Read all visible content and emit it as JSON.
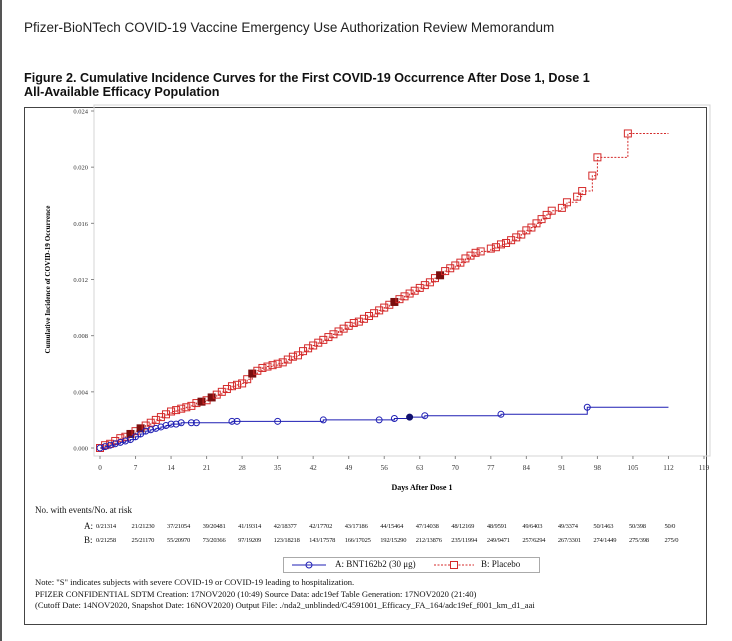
{
  "document_header": "Pfizer-BioNTech COVID-19 Vaccine Emergency Use Authorization Review Memorandum",
  "figure_title_line1": "Figure 2. Cumulative Incidence Curves for the First COVID-19 Occurrence After Dose 1, Dose 1",
  "figure_title_line2": "All-Available Efficacy Population",
  "chart_data": {
    "type": "line",
    "title": "Cumulative Incidence Curves for the First COVID-19 Occurrence After Dose 1, Dose 1",
    "xlabel": "Days After Dose 1",
    "ylabel": "Cumulative Incidence of COVID-19 Occurrence",
    "xlim": [
      0,
      119
    ],
    "ylim": [
      0,
      0.024
    ],
    "x_ticks": [
      "0",
      "7",
      "14",
      "21",
      "28",
      "35",
      "42",
      "49",
      "56",
      "63",
      "70",
      "77",
      "84",
      "91",
      "98",
      "105",
      "112",
      "119"
    ],
    "y_ticks": [
      "0.000",
      "0.004",
      "0.008",
      "0.012",
      "0.016",
      "0.020",
      "0.024"
    ],
    "grid": false,
    "legend_position": "bottom",
    "series": [
      {
        "name": "A: BNT162b2 (30 μg)",
        "color": "#1f1fb4",
        "marker": "circle",
        "line_style": "solid",
        "x": [
          0,
          1,
          2,
          3,
          4,
          5,
          6,
          7,
          8,
          9,
          10,
          11,
          12,
          13,
          14,
          15,
          16,
          18,
          19,
          26,
          27,
          35,
          44,
          55,
          58,
          61,
          64,
          79,
          96,
          112
        ],
        "y": [
          0.0,
          0.0001,
          0.0002,
          0.0003,
          0.0004,
          0.0005,
          0.0006,
          0.0008,
          0.001,
          0.0012,
          0.0013,
          0.0014,
          0.0015,
          0.0016,
          0.0017,
          0.0017,
          0.0018,
          0.0018,
          0.0018,
          0.0019,
          0.0019,
          0.0019,
          0.002,
          0.002,
          0.0021,
          0.0022,
          0.0023,
          0.0024,
          0.0029,
          0.0029
        ],
        "severe_x": [
          61
        ]
      },
      {
        "name": "B: Placebo",
        "color": "#d42a2a",
        "marker": "square",
        "line_style": "dashed",
        "x": [
          0,
          1,
          2,
          3,
          4,
          5,
          6,
          7,
          8,
          9,
          10,
          11,
          12,
          13,
          14,
          15,
          16,
          17,
          18,
          19,
          20,
          21,
          22,
          23,
          24,
          25,
          26,
          27,
          28,
          29,
          30,
          31,
          32,
          33,
          34,
          35,
          36,
          37,
          38,
          39,
          40,
          41,
          42,
          43,
          44,
          45,
          46,
          47,
          48,
          49,
          50,
          51,
          52,
          53,
          54,
          55,
          56,
          57,
          58,
          59,
          60,
          61,
          62,
          63,
          64,
          65,
          66,
          67,
          68,
          69,
          70,
          71,
          72,
          73,
          74,
          75,
          77,
          78,
          79,
          80,
          81,
          82,
          83,
          84,
          85,
          86,
          87,
          88,
          89,
          91,
          92,
          94,
          95,
          97,
          98,
          104,
          112
        ],
        "y": [
          0.0,
          0.0002,
          0.0003,
          0.0005,
          0.0007,
          0.0008,
          0.001,
          0.0012,
          0.0014,
          0.0016,
          0.0018,
          0.002,
          0.0022,
          0.0024,
          0.0026,
          0.0027,
          0.0028,
          0.0029,
          0.003,
          0.0032,
          0.0033,
          0.0034,
          0.0036,
          0.0038,
          0.004,
          0.0042,
          0.0044,
          0.0045,
          0.0046,
          0.0049,
          0.0053,
          0.0055,
          0.0057,
          0.0058,
          0.0059,
          0.006,
          0.0061,
          0.0063,
          0.0065,
          0.0066,
          0.0069,
          0.0071,
          0.0073,
          0.0075,
          0.0077,
          0.0079,
          0.0081,
          0.0083,
          0.0085,
          0.0087,
          0.0089,
          0.009,
          0.0092,
          0.0094,
          0.0096,
          0.0098,
          0.01,
          0.0102,
          0.0104,
          0.0106,
          0.0108,
          0.011,
          0.0112,
          0.0114,
          0.0116,
          0.0118,
          0.0121,
          0.0123,
          0.0126,
          0.0128,
          0.013,
          0.0132,
          0.0135,
          0.0137,
          0.0139,
          0.014,
          0.0142,
          0.0143,
          0.0145,
          0.0146,
          0.0148,
          0.015,
          0.0152,
          0.0155,
          0.0157,
          0.016,
          0.0163,
          0.0166,
          0.0169,
          0.0171,
          0.0175,
          0.0179,
          0.0183,
          0.0194,
          0.0207,
          0.0224,
          0.0224
        ],
        "severe_x": [
          6,
          8,
          20,
          22,
          30,
          58,
          67
        ]
      }
    ]
  },
  "risk_table": {
    "title": "No. with events/No. at risk",
    "rows": [
      {
        "label": "A:",
        "values": [
          "0/21314",
          "21/21230",
          "37/21054",
          "39/20481",
          "41/19314",
          "42/18377",
          "42/17702",
          "43/17186",
          "44/15464",
          "47/14038",
          "48/12169",
          "48/9591",
          "49/6403",
          "49/3374",
          "50/1463",
          "50/398",
          "50/0"
        ]
      },
      {
        "label": "B:",
        "values": [
          "0/21258",
          "25/21170",
          "55/20970",
          "73/20366",
          "97/19209",
          "123/18218",
          "143/17578",
          "166/17025",
          "192/15290",
          "212/13876",
          "235/11994",
          "249/9471",
          "257/6294",
          "267/3301",
          "274/1449",
          "275/398",
          "275/0"
        ]
      }
    ]
  },
  "legend": {
    "a_label": "A: BNT162b2 (30 μg)",
    "b_label": "B: Placebo"
  },
  "notes": {
    "line1": "Note: \"S\" indicates subjects with severe COVID-19 or COVID-19 leading to hospitalization.",
    "line2": "PFIZER CONFIDENTIAL  SDTM Creation: 17NOV2020 (10:49)  Source Data: adc19ef  Table Generation: 17NOV2020 (21:40)",
    "line3": "(Cutoff Date: 14NOV2020, Snapshot Date: 16NOV2020) Output File: ./nda2_unblinded/C4591001_Efficacy_FA_164/adc19ef_f001_km_d1_aai"
  }
}
